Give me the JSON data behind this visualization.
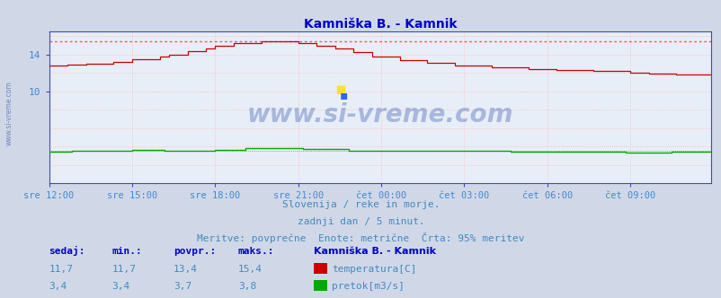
{
  "title": "Kamniška B. - Kamnik",
  "title_color": "#0000cc",
  "bg_color": "#d0d8e8",
  "plot_bg_color": "#e8eef8",
  "grid_color": "#ffaaaa",
  "xlabel_color": "#4488cc",
  "ylabel_color": "#4488cc",
  "x_ticks_labels": [
    "sre 12:00",
    "sre 15:00",
    "sre 18:00",
    "sre 21:00",
    "čet 00:00",
    "čet 03:00",
    "čet 06:00",
    "čet 09:00"
  ],
  "x_ticks_pos": [
    0,
    36,
    72,
    108,
    144,
    180,
    216,
    252
  ],
  "ylim": [
    0,
    16.5
  ],
  "xlim": [
    0,
    287
  ],
  "temp_color": "#cc0000",
  "flow_color": "#00aa00",
  "max_line_color": "#ff5555",
  "max_temp_value": 15.4,
  "watermark_text": "www.si-vreme.com",
  "watermark_color": "#3355aa",
  "watermark_alpha": 0.35,
  "subtitle1": "Slovenija / reke in morje.",
  "subtitle2": "zadnji dan / 5 minut.",
  "subtitle3": "Meritve: povprečne  Enote: metrične  Črta: 95% meritev",
  "subtitle_color": "#4488bb",
  "legend_title": "Kamniška B. - Kamnik",
  "legend_title_color": "#0000cc",
  "legend_color": "#4488bb",
  "table_header": [
    "sedaj:",
    "min.:",
    "povpr.:",
    "maks.:"
  ],
  "table_temp": [
    "11,7",
    "11,7",
    "13,4",
    "15,4"
  ],
  "table_flow": [
    "3,4",
    "3,4",
    "3,7",
    "3,8"
  ],
  "table_color": "#4488bb",
  "table_header_color": "#0000cc",
  "spine_color": "#4444cc",
  "left_watermark": "www.si-vreme.com"
}
